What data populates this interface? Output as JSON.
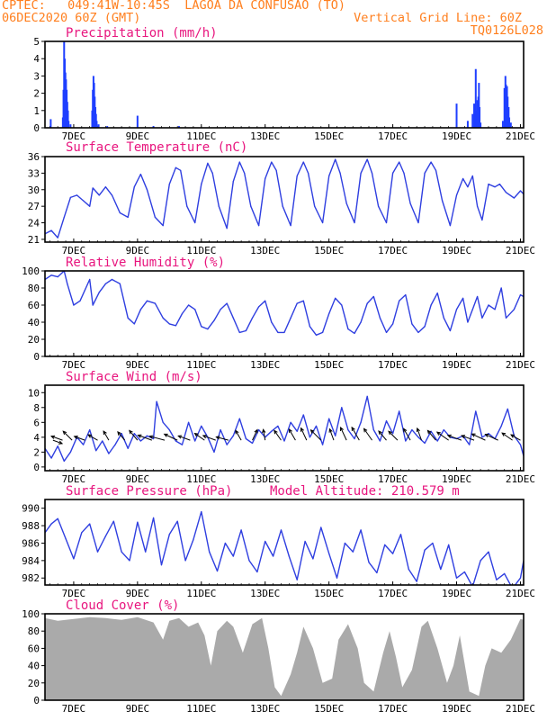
{
  "header": {
    "line1_left": "CPTEC:   049:41W-10:45S  LAGOA DA CONFUSAO (TO)",
    "line2_left": "06DEC2020 60Z (GMT)",
    "line2_right": "Vertical Grid Line: 60Z",
    "line3_right": "TQ0126L028"
  },
  "colors": {
    "header": "#ff7f1e",
    "panel_title": "#e8157e",
    "series_line": "#2f3fe0",
    "precip_bar": "#1f3fff",
    "cloud_fill": "#aaaaaa",
    "wind_arrow": "#000000",
    "frame": "#000000"
  },
  "x_axis": {
    "labels": [
      "7DEC",
      "9DEC",
      "11DEC",
      "13DEC",
      "15DEC",
      "17DEC",
      "19DEC",
      "21DEC"
    ],
    "label_times": [
      1,
      3,
      5,
      7,
      9,
      11,
      13,
      15
    ],
    "range": [
      0.1,
      15.1
    ],
    "unit": "days after 06DEC2020 00Z"
  },
  "chart_data": [
    {
      "id": "precip",
      "type": "bar",
      "title": "Precipitation (mm/h)",
      "ylim": [
        0,
        5
      ],
      "yticks": [
        0,
        1,
        2,
        3,
        4,
        5
      ],
      "x": [
        0.28,
        0.66,
        0.68,
        0.7,
        0.72,
        0.74,
        0.76,
        0.78,
        0.8,
        0.82,
        0.84,
        0.9,
        1.58,
        1.6,
        1.62,
        1.64,
        1.66,
        1.68,
        1.7,
        1.72,
        1.78,
        2.05,
        3.0,
        3.5,
        4.3,
        13.0,
        13.35,
        13.5,
        13.55,
        13.6,
        13.63,
        13.65,
        13.68,
        13.7,
        13.72,
        13.75,
        14.45,
        14.5,
        14.53,
        14.55,
        14.58,
        14.6,
        14.63,
        14.65,
        14.7
      ],
      "values": [
        0.5,
        0.6,
        2.2,
        5.0,
        4.0,
        3.2,
        2.8,
        2.2,
        1.5,
        1.0,
        0.4,
        0.2,
        1.0,
        2.2,
        3.0,
        2.6,
        1.8,
        1.2,
        0.8,
        0.4,
        0.2,
        0.1,
        0.7,
        0.1,
        0.1,
        1.4,
        0.4,
        0.8,
        1.4,
        3.4,
        1.0,
        1.6,
        1.8,
        2.6,
        1.2,
        0.3,
        0.4,
        2.3,
        3.0,
        2.5,
        2.4,
        1.8,
        1.2,
        0.6,
        0.3
      ]
    },
    {
      "id": "temp",
      "type": "line",
      "title": "Surface Temperature (nC)",
      "ylim": [
        20.5,
        36
      ],
      "yticks": [
        21,
        24,
        27,
        30,
        33,
        36
      ],
      "x": [
        0.1,
        0.3,
        0.5,
        0.7,
        0.9,
        1.1,
        1.3,
        1.5,
        1.6,
        1.8,
        2.0,
        2.2,
        2.45,
        2.7,
        2.9,
        3.1,
        3.3,
        3.55,
        3.8,
        4.0,
        4.2,
        4.35,
        4.55,
        4.8,
        5.0,
        5.2,
        5.35,
        5.55,
        5.8,
        6.0,
        6.2,
        6.35,
        6.55,
        6.8,
        7.0,
        7.2,
        7.35,
        7.55,
        7.8,
        8.0,
        8.2,
        8.35,
        8.55,
        8.8,
        9.0,
        9.2,
        9.35,
        9.55,
        9.8,
        10.0,
        10.2,
        10.35,
        10.55,
        10.8,
        11.0,
        11.2,
        11.35,
        11.55,
        11.8,
        12.0,
        12.2,
        12.35,
        12.55,
        12.8,
        13.0,
        13.2,
        13.35,
        13.5,
        13.65,
        13.8,
        14.0,
        14.2,
        14.35,
        14.55,
        14.8,
        15.0,
        15.1
      ],
      "values": [
        22.0,
        22.6,
        21.3,
        25.0,
        28.6,
        29.0,
        28.0,
        27.0,
        30.3,
        29.0,
        30.5,
        29.0,
        25.8,
        25.0,
        30.5,
        32.8,
        30.0,
        25.0,
        23.5,
        31.0,
        34.0,
        33.5,
        27.0,
        24.0,
        31.0,
        34.8,
        33.0,
        27.0,
        23.0,
        31.5,
        35.0,
        33.0,
        27.0,
        23.5,
        32.0,
        35.0,
        33.5,
        27.0,
        23.5,
        32.5,
        35.0,
        33.0,
        27.0,
        24.0,
        32.5,
        35.5,
        33.0,
        27.5,
        24.0,
        33.0,
        35.5,
        33.0,
        27.0,
        24.0,
        33.0,
        35.0,
        33.0,
        27.5,
        24.0,
        33.0,
        35.0,
        33.5,
        28.0,
        23.5,
        29.0,
        32.0,
        30.5,
        32.5,
        27.0,
        24.5,
        31.0,
        30.5,
        31.0,
        29.5,
        28.5,
        29.8,
        29.2
      ]
    },
    {
      "id": "rh",
      "type": "line",
      "title": "Relative Humidity (%)",
      "ylim": [
        0,
        100
      ],
      "yticks": [
        0,
        20,
        40,
        60,
        80,
        100
      ],
      "x": [
        0.1,
        0.3,
        0.5,
        0.7,
        0.8,
        1.0,
        1.2,
        1.5,
        1.6,
        1.8,
        2.0,
        2.2,
        2.45,
        2.7,
        2.9,
        3.1,
        3.3,
        3.55,
        3.8,
        4.0,
        4.2,
        4.4,
        4.6,
        4.8,
        5.0,
        5.2,
        5.4,
        5.6,
        5.8,
        6.0,
        6.2,
        6.4,
        6.6,
        6.8,
        7.0,
        7.2,
        7.4,
        7.6,
        7.8,
        8.0,
        8.2,
        8.4,
        8.6,
        8.8,
        9.0,
        9.2,
        9.4,
        9.6,
        9.8,
        10.0,
        10.2,
        10.4,
        10.6,
        10.8,
        11.0,
        11.2,
        11.4,
        11.6,
        11.8,
        12.0,
        12.2,
        12.4,
        12.6,
        12.8,
        13.0,
        13.2,
        13.35,
        13.5,
        13.65,
        13.8,
        14.0,
        14.2,
        14.4,
        14.55,
        14.8,
        15.0,
        15.1
      ],
      "values": [
        90,
        95,
        93,
        100,
        85,
        60,
        65,
        90,
        60,
        75,
        85,
        90,
        85,
        45,
        38,
        55,
        65,
        62,
        45,
        38,
        36,
        50,
        60,
        55,
        35,
        32,
        42,
        55,
        62,
        45,
        28,
        30,
        45,
        58,
        65,
        40,
        28,
        28,
        45,
        62,
        65,
        35,
        25,
        28,
        50,
        68,
        60,
        32,
        27,
        40,
        62,
        70,
        45,
        28,
        38,
        65,
        72,
        38,
        28,
        35,
        60,
        74,
        45,
        30,
        55,
        68,
        40,
        55,
        70,
        45,
        60,
        55,
        80,
        45,
        55,
        72,
        70
      ]
    },
    {
      "id": "wind",
      "type": "line",
      "title": "Surface Wind (m/s)",
      "ylim": [
        -0.5,
        11
      ],
      "yticks": [
        0,
        2,
        4,
        6,
        8,
        10
      ],
      "x": [
        0.1,
        0.3,
        0.5,
        0.7,
        0.9,
        1.1,
        1.3,
        1.5,
        1.7,
        1.9,
        2.1,
        2.3,
        2.5,
        2.7,
        2.9,
        3.1,
        3.3,
        3.5,
        3.6,
        3.8,
        4.0,
        4.2,
        4.4,
        4.6,
        4.8,
        5.0,
        5.2,
        5.4,
        5.6,
        5.8,
        6.0,
        6.2,
        6.4,
        6.6,
        6.8,
        7.0,
        7.2,
        7.4,
        7.6,
        7.8,
        8.0,
        8.2,
        8.4,
        8.6,
        8.8,
        9.0,
        9.2,
        9.4,
        9.6,
        9.8,
        10.0,
        10.2,
        10.4,
        10.6,
        10.8,
        11.0,
        11.2,
        11.4,
        11.6,
        11.8,
        12.0,
        12.2,
        12.4,
        12.6,
        12.8,
        13.0,
        13.2,
        13.4,
        13.6,
        13.8,
        14.0,
        14.2,
        14.4,
        14.6,
        14.8,
        15.0,
        15.1
      ],
      "values": [
        2.5,
        1.2,
        2.8,
        0.8,
        2.0,
        4.0,
        3.0,
        5.0,
        2.2,
        3.5,
        1.8,
        3.0,
        4.5,
        2.5,
        4.5,
        3.5,
        4.2,
        3.8,
        8.8,
        6.0,
        5.0,
        3.5,
        3.0,
        6.0,
        3.5,
        5.5,
        4.0,
        2.0,
        5.0,
        3.0,
        4.2,
        6.5,
        3.8,
        3.2,
        5.0,
        4.0,
        4.8,
        5.5,
        3.5,
        6.0,
        4.8,
        7.0,
        4.0,
        5.5,
        3.0,
        6.5,
        4.2,
        8.0,
        5.0,
        3.8,
        6.0,
        9.5,
        5.0,
        3.5,
        6.2,
        4.5,
        7.5,
        3.5,
        5.0,
        4.0,
        3.2,
        4.8,
        3.5,
        5.0,
        4.0,
        3.8,
        4.2,
        3.0,
        7.5,
        4.0,
        4.5,
        3.8,
        5.5,
        7.8,
        4.2,
        3.0,
        1.5
      ],
      "arrows_x": [
        0.35,
        0.65,
        0.95,
        1.35,
        1.75,
        2.1,
        2.6,
        3.0,
        3.45,
        3.85,
        4.25,
        4.65,
        5.1,
        5.45,
        5.85,
        6.25,
        6.6,
        7.0,
        7.5,
        7.95,
        8.3,
        8.75,
        9.15,
        9.55,
        9.95,
        10.35,
        10.8,
        11.15,
        11.55,
        11.9,
        12.35,
        12.75,
        13.15,
        13.55,
        13.9,
        14.3,
        14.75,
        15.0
      ],
      "arrows_dir_deg": [
        20,
        200,
        225,
        200,
        210,
        240,
        230,
        230,
        200,
        195,
        205,
        200,
        215,
        200,
        195,
        240,
        295,
        260,
        235,
        240,
        245,
        225,
        250,
        245,
        240,
        235,
        230,
        225,
        240,
        250,
        230,
        215,
        200,
        200,
        205,
        205,
        215,
        210
      ],
      "arrows_speed": [
        1.2,
        1.8,
        2.0,
        1.6,
        1.5,
        1.4,
        1.5,
        2.0,
        2.6,
        2.8,
        2.5,
        2.0,
        1.8,
        2.2,
        2.0,
        1.6,
        1.7,
        1.5,
        1.8,
        2.0,
        2.2,
        2.5,
        1.8,
        2.4,
        2.6,
        2.4,
        1.8,
        2.0,
        2.2,
        2.0,
        2.0,
        2.4,
        2.5,
        2.2,
        2.6,
        2.4,
        2.0,
        1.5
      ]
    },
    {
      "id": "pressure",
      "type": "line",
      "title": "Surface Pressure (hPa)",
      "annotation": "Model Altitude: 210.579 m",
      "ylim": [
        981.2,
        991
      ],
      "yticks": [
        982,
        984,
        986,
        988,
        990
      ],
      "x": [
        0.1,
        0.3,
        0.5,
        0.75,
        1.0,
        1.25,
        1.5,
        1.75,
        2.0,
        2.25,
        2.5,
        2.75,
        3.0,
        3.25,
        3.5,
        3.75,
        4.0,
        4.25,
        4.5,
        4.75,
        5.0,
        5.25,
        5.5,
        5.75,
        6.0,
        6.25,
        6.5,
        6.75,
        7.0,
        7.25,
        7.5,
        7.75,
        8.0,
        8.25,
        8.5,
        8.75,
        9.0,
        9.25,
        9.5,
        9.75,
        10.0,
        10.25,
        10.5,
        10.75,
        11.0,
        11.25,
        11.5,
        11.75,
        12.0,
        12.25,
        12.5,
        12.75,
        13.0,
        13.25,
        13.5,
        13.75,
        14.0,
        14.25,
        14.5,
        14.75,
        15.0,
        15.1
      ],
      "values": [
        987.2,
        988.2,
        988.8,
        986.5,
        984.2,
        987.2,
        988.2,
        985.0,
        986.8,
        988.5,
        985.0,
        984.0,
        988.4,
        985.0,
        988.9,
        983.5,
        987.0,
        988.5,
        984.0,
        986.4,
        989.6,
        985.0,
        982.8,
        986.0,
        984.5,
        987.5,
        984.0,
        982.7,
        986.2,
        984.5,
        987.5,
        984.5,
        981.8,
        986.2,
        984.2,
        987.8,
        984.8,
        982.0,
        986.0,
        985.0,
        987.5,
        983.8,
        982.6,
        985.8,
        984.8,
        987.0,
        983.0,
        981.6,
        985.2,
        986.0,
        983.0,
        985.8,
        982.0,
        982.7,
        981.0,
        984.0,
        985.0,
        981.8,
        982.5,
        980.8,
        982.0,
        984.0
      ]
    },
    {
      "id": "cloud",
      "type": "area",
      "title": "Cloud Cover (%)",
      "ylim": [
        0,
        100
      ],
      "yticks": [
        0,
        20,
        40,
        60,
        80,
        100
      ],
      "x": [
        0.1,
        0.5,
        1.0,
        1.5,
        2.0,
        2.5,
        3.0,
        3.5,
        3.8,
        4.0,
        4.3,
        4.6,
        4.9,
        5.1,
        5.3,
        5.5,
        5.8,
        6.0,
        6.3,
        6.6,
        6.9,
        7.1,
        7.3,
        7.5,
        7.8,
        8.0,
        8.2,
        8.5,
        8.8,
        9.1,
        9.3,
        9.6,
        9.9,
        10.1,
        10.4,
        10.7,
        10.9,
        11.1,
        11.3,
        11.6,
        11.9,
        12.1,
        12.4,
        12.7,
        12.9,
        13.1,
        13.4,
        13.7,
        13.9,
        14.1,
        14.4,
        14.7,
        15.0,
        15.1
      ],
      "values": [
        95,
        92,
        94,
        96,
        95,
        93,
        96,
        90,
        70,
        92,
        95,
        85,
        90,
        75,
        40,
        80,
        92,
        85,
        55,
        88,
        95,
        60,
        15,
        5,
        30,
        55,
        85,
        60,
        20,
        25,
        70,
        88,
        60,
        20,
        10,
        55,
        80,
        50,
        15,
        35,
        85,
        92,
        60,
        20,
        40,
        75,
        10,
        5,
        40,
        60,
        55,
        70,
        94,
        93
      ]
    }
  ]
}
